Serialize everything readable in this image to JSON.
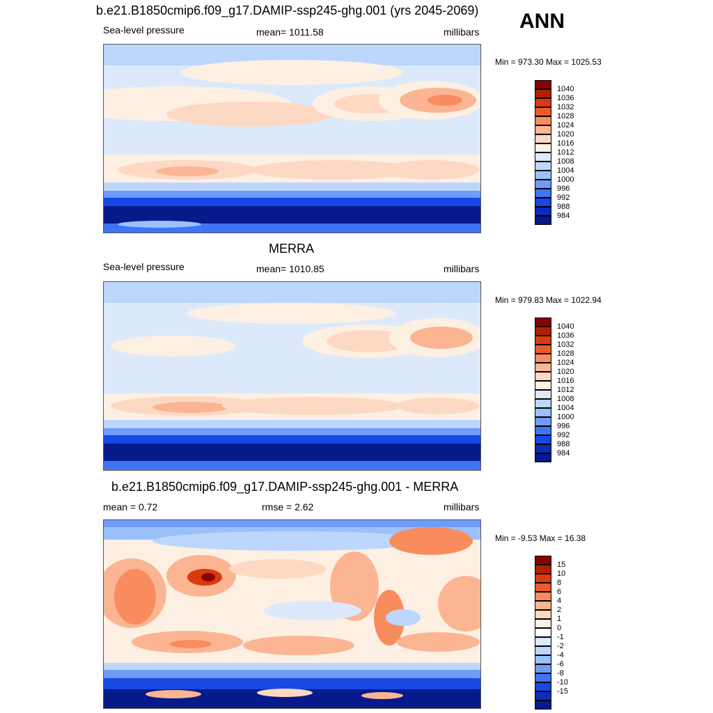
{
  "season": "ANN",
  "panels": [
    {
      "id": "model",
      "title": "b.e21.B1850cmip6.f09_g17.DAMIP-ssp245-ghg.001 (yrs 2045-2069)",
      "left": "Sea-level pressure",
      "center": "mean= 1011.58",
      "right": "millibars",
      "minmax": "Min = 973.30 Max = 1025.53"
    },
    {
      "id": "obs",
      "title": "MERRA",
      "left": "Sea-level pressure",
      "center": "mean= 1010.85",
      "right": "millibars",
      "minmax": "Min = 979.83 Max = 1022.94"
    },
    {
      "id": "diff",
      "title": "b.e21.B1850cmip6.f09_g17.DAMIP-ssp245-ghg.001 - MERRA",
      "left": "mean =   0.72",
      "center": "rmse =   2.62",
      "right": "millibars",
      "minmax": "Min =  -9.53 Max =  16.38"
    }
  ],
  "colorbars": {
    "slp": {
      "colors": [
        "#8b0000",
        "#b22000",
        "#d93a0f",
        "#f05a28",
        "#f98c5e",
        "#fbb593",
        "#fdd9c4",
        "#fdf0e2",
        "#dbe9fb",
        "#bcd7fb",
        "#9bc1fb",
        "#6f9cf9",
        "#3f74f4",
        "#1648e2",
        "#0a2cbd",
        "#061a8c"
      ],
      "labels": [
        "1040",
        "1036",
        "1032",
        "1028",
        "1024",
        "1020",
        "1016",
        "1012",
        "1008",
        "1004",
        "1000",
        "996",
        "992",
        "988",
        "984"
      ]
    },
    "diff": {
      "colors": [
        "#8b0000",
        "#b22000",
        "#d93a0f",
        "#f05a28",
        "#f98c5e",
        "#fbb593",
        "#fdd9c4",
        "#fdf0e2",
        "#ffffff",
        "#dbe9fb",
        "#bcd7fb",
        "#9bc1fb",
        "#6f9cf9",
        "#3f74f4",
        "#1648e2",
        "#0a2cbd",
        "#061a8c"
      ],
      "labels": [
        "15",
        "10",
        "8",
        "6",
        "4",
        "2",
        "1",
        "0",
        "-1",
        "-2",
        "-4",
        "-6",
        "-8",
        "-10",
        "-15"
      ]
    }
  }
}
